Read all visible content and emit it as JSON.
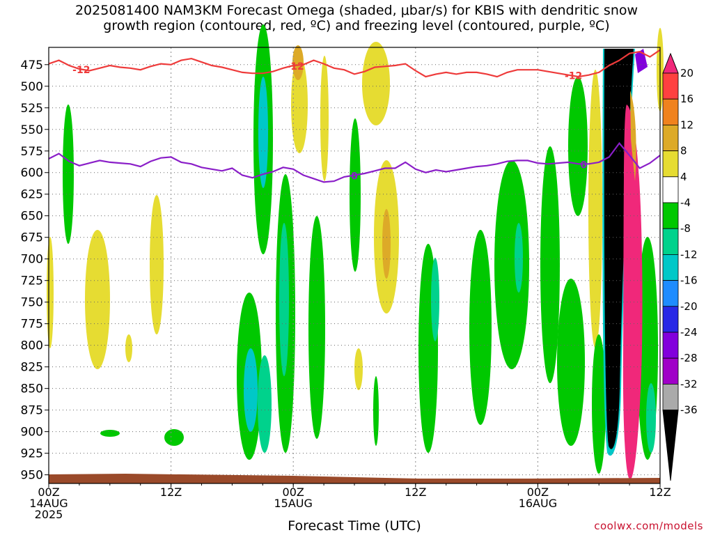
{
  "title_line1": "2025081400 NAM3KM Forecast Omega (shaded, μbar/s) for KBIS with dendritic snow",
  "title_line2": "growth region (contoured, red, ºC) and freezing level (contoured, purple, ºC)",
  "credit": "coolwx.com/models",
  "chart_data": {
    "type": "heatmap",
    "title": "2025081400 NAM3KM Forecast Omega (shaded, μbar/s) for KBIS with dendritic snow growth region (contoured, red, ºC) and freezing level (contoured, purple, ºC)",
    "xlabel": "Forecast Time (UTC)",
    "ylabel": "",
    "x_range_hours": [
      0,
      60
    ],
    "y_range_hpa": [
      455,
      960
    ],
    "y_ticks": [
      475,
      500,
      525,
      550,
      575,
      600,
      625,
      650,
      675,
      700,
      725,
      750,
      775,
      800,
      825,
      850,
      875,
      900,
      925,
      950
    ],
    "x_ticks": [
      {
        "hour": 0,
        "labels": [
          "00Z",
          "14AUG",
          "2025"
        ]
      },
      {
        "hour": 12,
        "labels": [
          "12Z"
        ]
      },
      {
        "hour": 24,
        "labels": [
          "00Z",
          "15AUG"
        ]
      },
      {
        "hour": 36,
        "labels": [
          "12Z"
        ]
      },
      {
        "hour": 48,
        "labels": [
          "00Z",
          "16AUG"
        ]
      },
      {
        "hour": 60,
        "labels": [
          "12Z"
        ]
      }
    ],
    "grid": true,
    "colorbar": {
      "labels": [
        "20",
        "16",
        "12",
        "8",
        "4",
        "-4",
        "-8",
        "-12",
        "-16",
        "-20",
        "-24",
        "-28",
        "-32",
        "-36"
      ],
      "bins": [
        {
          "from": 20,
          "to": 24,
          "color": "#f0287a"
        },
        {
          "from": 16,
          "to": 20,
          "color": "#ff4040"
        },
        {
          "from": 12,
          "to": 16,
          "color": "#f0821e"
        },
        {
          "from": 8,
          "to": 12,
          "color": "#ddaa28"
        },
        {
          "from": 4,
          "to": 8,
          "color": "#e6dc32"
        },
        {
          "from": -4,
          "to": 4,
          "color": "#ffffff"
        },
        {
          "from": -8,
          "to": -4,
          "color": "#00c800"
        },
        {
          "from": -12,
          "to": -8,
          "color": "#00d28c"
        },
        {
          "from": -16,
          "to": -12,
          "color": "#00c8c8"
        },
        {
          "from": -20,
          "to": -16,
          "color": "#1e8cff"
        },
        {
          "from": -24,
          "to": -20,
          "color": "#2828e6"
        },
        {
          "from": -28,
          "to": -24,
          "color": "#8200dc"
        },
        {
          "from": -32,
          "to": -28,
          "color": "#a000c8"
        },
        {
          "from": -36,
          "to": -32,
          "color": "#aaaaaa"
        },
        {
          "from": -40,
          "to": -36,
          "color": "#000000"
        }
      ]
    },
    "contours": [
      {
        "name": "-12",
        "color": "#ee3a3a",
        "labels": [
          {
            "hour": 3.2,
            "text": "-12"
          },
          {
            "hour": 24.2,
            "text": "-12"
          },
          {
            "hour": 51.5,
            "text": "-12"
          }
        ],
        "points": [
          [
            0,
            474
          ],
          [
            1,
            470
          ],
          [
            2,
            476
          ],
          [
            3,
            480
          ],
          [
            4,
            482
          ],
          [
            5,
            479
          ],
          [
            6,
            476
          ],
          [
            7,
            478
          ],
          [
            8,
            479
          ],
          [
            9,
            481
          ],
          [
            10,
            477
          ],
          [
            11,
            474
          ],
          [
            12,
            475
          ],
          [
            13,
            470
          ],
          [
            14,
            468
          ],
          [
            15,
            472
          ],
          [
            16,
            476
          ],
          [
            17,
            478
          ],
          [
            18,
            481
          ],
          [
            19,
            484
          ],
          [
            20,
            485
          ],
          [
            21,
            485
          ],
          [
            22,
            483
          ],
          [
            23,
            479
          ],
          [
            24,
            476
          ],
          [
            25,
            475
          ],
          [
            26,
            470
          ],
          [
            27,
            474
          ],
          [
            28,
            479
          ],
          [
            29,
            481
          ],
          [
            30,
            486
          ],
          [
            31,
            483
          ],
          [
            32,
            478
          ],
          [
            33,
            477
          ],
          [
            34,
            476
          ],
          [
            35,
            474
          ],
          [
            36,
            482
          ],
          [
            37,
            489
          ],
          [
            38,
            486
          ],
          [
            39,
            484
          ],
          [
            40,
            486
          ],
          [
            41,
            484
          ],
          [
            42,
            484
          ],
          [
            43,
            486
          ],
          [
            44,
            489
          ],
          [
            45,
            484
          ],
          [
            46,
            481
          ],
          [
            47,
            481
          ],
          [
            48,
            481
          ],
          [
            49,
            483
          ],
          [
            50,
            485
          ],
          [
            51,
            487
          ],
          [
            52,
            489
          ],
          [
            53,
            487
          ],
          [
            54,
            484
          ],
          [
            55,
            476
          ],
          [
            56,
            470
          ],
          [
            57,
            462
          ],
          [
            58,
            460
          ],
          [
            59,
            466
          ],
          [
            60,
            458
          ]
        ]
      },
      {
        "name": "0",
        "color": "#8a1ec8",
        "labels": [
          {
            "hour": 30.0,
            "text": "0"
          },
          {
            "hour": 52.5,
            "text": "0"
          }
        ],
        "points": [
          [
            0,
            584
          ],
          [
            1,
            578
          ],
          [
            2,
            587
          ],
          [
            3,
            592
          ],
          [
            4,
            589
          ],
          [
            5,
            586
          ],
          [
            6,
            588
          ],
          [
            7,
            589
          ],
          [
            8,
            590
          ],
          [
            9,
            593
          ],
          [
            10,
            587
          ],
          [
            11,
            583
          ],
          [
            12,
            582
          ],
          [
            13,
            588
          ],
          [
            14,
            590
          ],
          [
            15,
            594
          ],
          [
            16,
            596
          ],
          [
            17,
            598
          ],
          [
            18,
            595
          ],
          [
            19,
            603
          ],
          [
            20,
            606
          ],
          [
            21,
            602
          ],
          [
            22,
            599
          ],
          [
            23,
            594
          ],
          [
            24,
            596
          ],
          [
            25,
            603
          ],
          [
            26,
            607
          ],
          [
            27,
            611
          ],
          [
            28,
            610
          ],
          [
            29,
            605
          ],
          [
            30,
            603
          ],
          [
            31,
            601
          ],
          [
            32,
            598
          ],
          [
            33,
            595
          ],
          [
            34,
            595
          ],
          [
            35,
            588
          ],
          [
            36,
            596
          ],
          [
            37,
            600
          ],
          [
            38,
            597
          ],
          [
            39,
            599
          ],
          [
            40,
            597
          ],
          [
            41,
            595
          ],
          [
            42,
            593
          ],
          [
            43,
            592
          ],
          [
            44,
            590
          ],
          [
            45,
            587
          ],
          [
            46,
            586
          ],
          [
            47,
            586
          ],
          [
            48,
            589
          ],
          [
            49,
            590
          ],
          [
            50,
            589
          ],
          [
            51,
            588
          ],
          [
            52,
            590
          ],
          [
            53,
            590
          ],
          [
            54,
            588
          ],
          [
            55,
            582
          ],
          [
            56,
            566
          ],
          [
            57,
            580
          ],
          [
            58,
            595
          ],
          [
            59,
            589
          ],
          [
            60,
            580
          ]
        ]
      }
    ]
  }
}
